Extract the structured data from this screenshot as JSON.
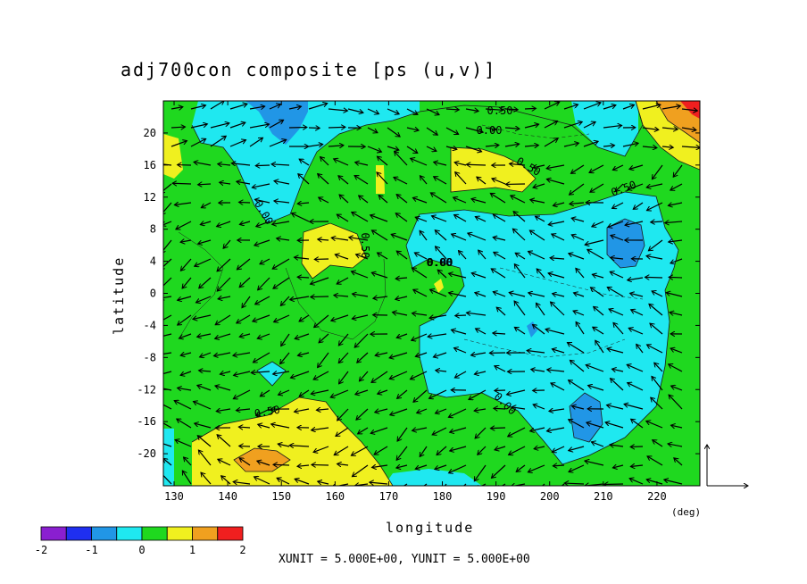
{
  "chart_data": {
    "type": "heatmap",
    "title": "adj700con composite [ps (u,v)]",
    "xlabel": "longitude",
    "ylabel": "latitude",
    "x_unit_label": "(deg)",
    "xlim": [
      128,
      228
    ],
    "ylim": [
      -24,
      24
    ],
    "x_ticks": [
      130,
      140,
      150,
      160,
      170,
      180,
      190,
      200,
      210,
      220
    ],
    "x_tick_labels": [
      "130",
      "140",
      "150",
      "160",
      "170",
      "180",
      "190",
      "200",
      "210",
      "220"
    ],
    "y_ticks": [
      20,
      16,
      12,
      8,
      4,
      0,
      -4,
      -8,
      -12,
      -16,
      -20
    ],
    "y_tick_labels": [
      "20",
      "16",
      "12",
      "8",
      "4",
      "0",
      "-4",
      "-8",
      "-12",
      "-16",
      "-20"
    ],
    "contour_labels": [
      "0.50",
      "0.00",
      "0.50",
      "0.00",
      "0.50",
      "0.00",
      "0.50",
      "0.00",
      "0.50",
      "0.00"
    ],
    "vector_unit_note": "XUNIT = 5.000E+00, YUNIT = 5.000E+00",
    "colorbar": {
      "levels": [
        -2,
        -1.5,
        -1,
        -0.5,
        0,
        0.5,
        1,
        1.5,
        2
      ],
      "tick_labels": [
        "-2",
        "-1",
        "0",
        "1",
        "2"
      ],
      "tick_values": [
        -2,
        -1,
        0,
        1,
        2
      ],
      "colors": [
        "#8a1fd0",
        "#1f2ff0",
        "#2196e6",
        "#1fe8f0",
        "#1fd81f",
        "#f0f01f",
        "#f0a01f",
        "#f01f1f"
      ]
    },
    "grid": false,
    "legend": "bottom-left"
  }
}
